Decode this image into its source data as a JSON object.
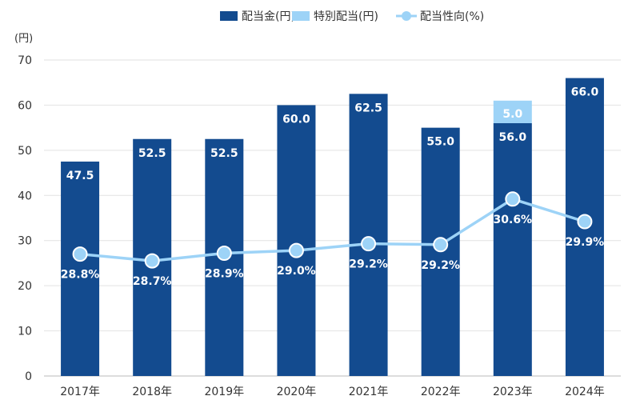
{
  "chart_data": {
    "type": "bar",
    "categories": [
      "2017年",
      "2018年",
      "2019年",
      "2020年",
      "2021年",
      "2022年",
      "2023年",
      "2024年"
    ],
    "y_unit": "(円)",
    "ylim": [
      0,
      70
    ],
    "y_ticks": [
      0,
      10,
      20,
      30,
      40,
      50,
      60,
      70
    ],
    "grid": true,
    "legend_position": "top-right",
    "series": [
      {
        "name": "配当金(円)",
        "kind": "bar",
        "color": "#134b8f",
        "values": [
          47.5,
          52.5,
          52.5,
          60.0,
          62.5,
          55.0,
          56.0,
          66.0
        ],
        "labels": [
          "47.5",
          "52.5",
          "52.5",
          "60.0",
          "62.5",
          "55.0",
          "56.0",
          "66.0"
        ]
      },
      {
        "name": "特別配当(円)",
        "kind": "bar-stacked",
        "color": "#9dd3f7",
        "values": [
          0,
          0,
          0,
          0,
          0,
          0,
          5.0,
          0
        ],
        "labels": [
          "",
          "",
          "",
          "",
          "",
          "",
          "5.0",
          ""
        ]
      },
      {
        "name": "配当性向(%)",
        "kind": "line",
        "color": "#9dd3f7",
        "values": [
          28.8,
          28.7,
          28.9,
          29.0,
          29.2,
          29.2,
          30.6,
          29.9
        ],
        "labels": [
          "28.8%",
          "28.7%",
          "28.9%",
          "29.0%",
          "29.2%",
          "29.2%",
          "30.6%",
          "29.9%"
        ],
        "plot_y": [
          27,
          25.5,
          27.2,
          27.8,
          29.3,
          29.1,
          39.2,
          34.2
        ]
      }
    ]
  }
}
